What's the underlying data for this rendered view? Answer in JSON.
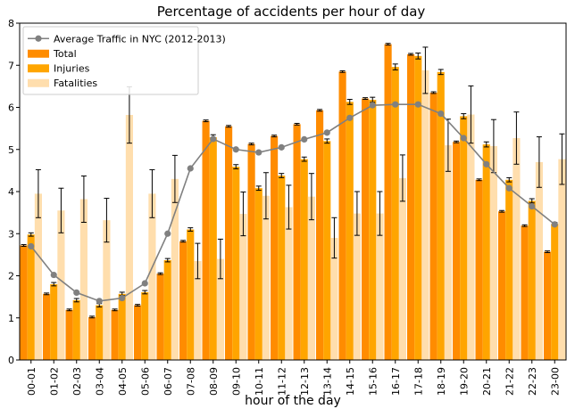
{
  "chart_data": {
    "type": "bar",
    "title": "Percentage of accidents per hour of day",
    "xlabel": "hour of the day",
    "ylabel": "",
    "ylim": [
      0,
      8
    ],
    "yticks": [
      "0",
      "1",
      "2",
      "3",
      "4",
      "5",
      "6",
      "7",
      "8"
    ],
    "grid": false,
    "legend_position": "top-left",
    "categories": [
      "00-01",
      "01-02",
      "02-03",
      "03-04",
      "04-05",
      "05-06",
      "06-07",
      "07-08",
      "08-09",
      "09-10",
      "10-11",
      "11-12",
      "12-13",
      "13-14",
      "14-15",
      "15-16",
      "16-17",
      "17-18",
      "18-19",
      "19-20",
      "20-21",
      "21-22",
      "22-23",
      "23-00"
    ],
    "series": [
      {
        "name": "Total",
        "kind": "bar",
        "color": "#ff8c00",
        "values": [
          2.72,
          1.57,
          1.19,
          1.02,
          1.19,
          1.3,
          2.05,
          2.82,
          5.68,
          5.55,
          5.13,
          5.32,
          5.6,
          5.93,
          6.85,
          6.21,
          7.5,
          7.26,
          6.35,
          5.18,
          4.28,
          3.53,
          3.19,
          2.57
        ],
        "errors": [
          0.02,
          0.02,
          0.02,
          0.02,
          0.02,
          0.02,
          0.02,
          0.02,
          0.02,
          0.02,
          0.02,
          0.02,
          0.02,
          0.02,
          0.02,
          0.02,
          0.02,
          0.02,
          0.02,
          0.02,
          0.02,
          0.02,
          0.02,
          0.02
        ]
      },
      {
        "name": "Injuries",
        "kind": "bar",
        "color": "#ffa500",
        "values": [
          2.98,
          1.8,
          1.42,
          1.3,
          1.57,
          1.61,
          2.37,
          3.1,
          5.29,
          4.59,
          4.08,
          4.38,
          4.77,
          5.2,
          6.13,
          6.18,
          6.96,
          7.22,
          6.84,
          5.79,
          5.12,
          4.28,
          3.78,
          3.23
        ],
        "errors": [
          0.04,
          0.04,
          0.04,
          0.04,
          0.04,
          0.04,
          0.04,
          0.04,
          0.06,
          0.05,
          0.05,
          0.05,
          0.05,
          0.05,
          0.06,
          0.06,
          0.07,
          0.07,
          0.06,
          0.06,
          0.06,
          0.05,
          0.05,
          0.04
        ]
      },
      {
        "name": "Fatalities",
        "kind": "bar",
        "color": "#ffdead",
        "values": [
          3.95,
          3.55,
          3.82,
          3.32,
          5.82,
          3.95,
          4.3,
          2.35,
          2.4,
          3.47,
          3.9,
          3.63,
          3.88,
          2.9,
          3.48,
          3.48,
          4.32,
          6.88,
          5.1,
          5.83,
          5.08,
          5.27,
          4.7,
          4.77
        ],
        "errors": [
          0.57,
          0.53,
          0.55,
          0.52,
          0.67,
          0.57,
          0.56,
          0.42,
          0.47,
          0.52,
          0.55,
          0.52,
          0.55,
          0.48,
          0.52,
          0.52,
          0.55,
          0.55,
          0.62,
          0.68,
          0.63,
          0.62,
          0.6,
          0.6
        ]
      },
      {
        "name": "Average Traffic in NYC (2012-2013)",
        "kind": "line",
        "color": "#808080",
        "values": [
          2.7,
          2.02,
          1.6,
          1.4,
          1.47,
          1.82,
          3.0,
          4.55,
          5.25,
          5.0,
          4.93,
          5.05,
          5.24,
          5.4,
          5.75,
          6.05,
          6.07,
          6.07,
          5.85,
          5.27,
          4.65,
          4.08,
          3.65,
          3.22
        ]
      }
    ]
  }
}
